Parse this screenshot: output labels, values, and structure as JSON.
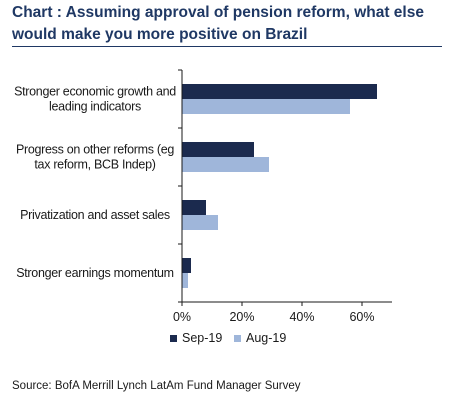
{
  "title": "Chart : Assuming approval of pension reform, what else would make you more positive on Brazil",
  "source": "Source: BofA Merrill Lynch LatAm Fund Manager Survey",
  "colors": {
    "series_dark": "#1b2a4e",
    "series_light": "#9fb6da",
    "axis": "#1a1a1a",
    "title": "#1f3864"
  },
  "chart_data": {
    "type": "bar",
    "orientation": "horizontal",
    "categories": [
      [
        "Stronger economic growth and",
        "leading indicators"
      ],
      [
        "Progress on other reforms (eg",
        "tax reform, BCB Indep)"
      ],
      [
        "Privatization and asset sales"
      ],
      [
        "Stronger earnings momentum"
      ]
    ],
    "series": [
      {
        "name": "Sep-19",
        "values": [
          65,
          24,
          8,
          3
        ]
      },
      {
        "name": "Aug-19",
        "values": [
          56,
          29,
          12,
          2
        ]
      }
    ],
    "xlim": [
      0,
      70
    ],
    "xticks": [
      0,
      20,
      40,
      60
    ],
    "xtick_labels": [
      "0%",
      "20%",
      "40%",
      "60%"
    ],
    "grid": false,
    "legend_position": "bottom"
  }
}
